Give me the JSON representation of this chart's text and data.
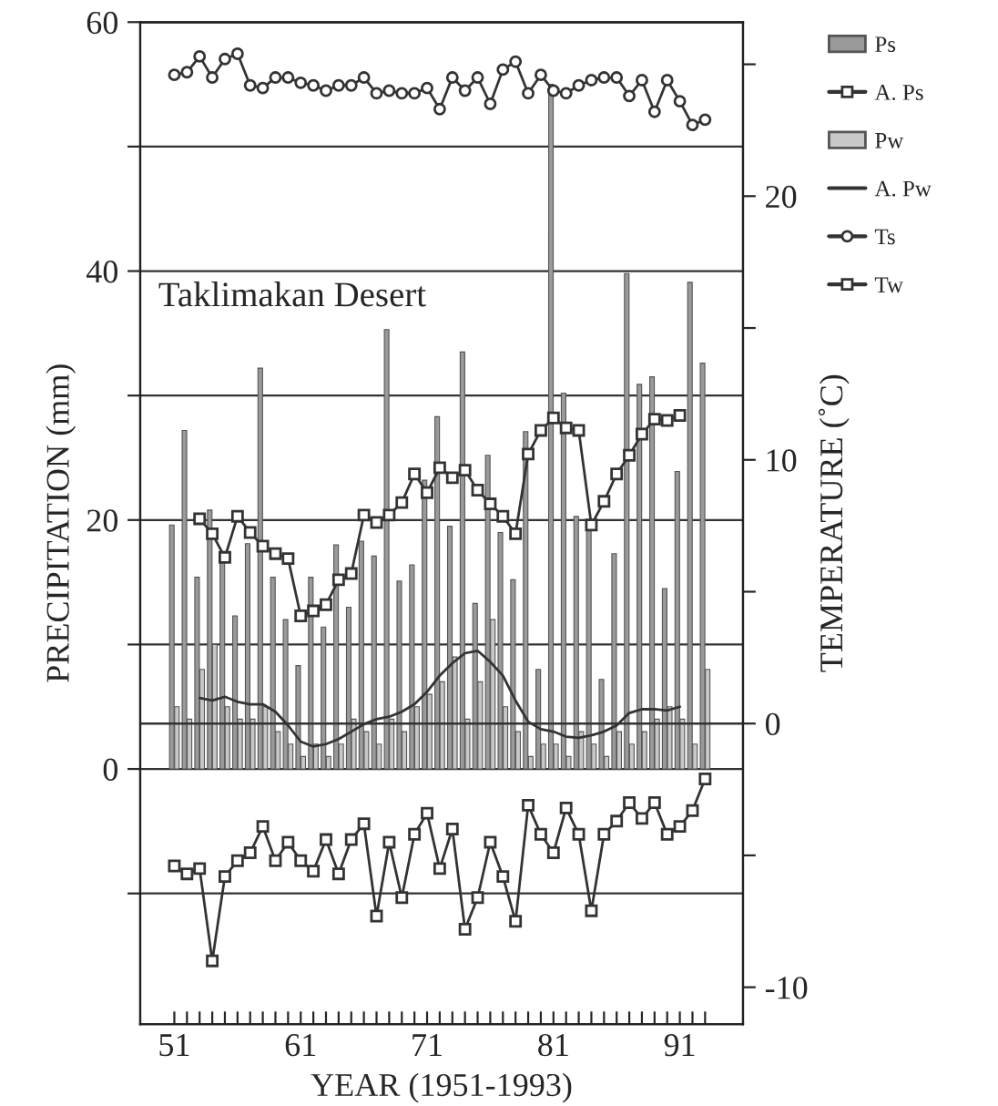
{
  "chart_data": {
    "type": "bar",
    "xlabel": "YEAR (1951-1993)",
    "ylabel": "PRECIPITATION (mm)",
    "y2label": "TEMPERATURE (˚C)",
    "annotations": [
      "Taklimakan Desert"
    ],
    "x": [
      1951,
      1952,
      1953,
      1954,
      1955,
      1956,
      1957,
      1958,
      1959,
      1960,
      1961,
      1962,
      1963,
      1964,
      1965,
      1966,
      1967,
      1968,
      1969,
      1970,
      1971,
      1972,
      1973,
      1974,
      1975,
      1976,
      1977,
      1978,
      1979,
      1980,
      1981,
      1982,
      1983,
      1984,
      1985,
      1986,
      1987,
      1988,
      1989,
      1990,
      1991,
      1992,
      1993
    ],
    "series": [
      {
        "name": "Ps",
        "color": "#9a9a9a",
        "values": [
          19.6,
          27.2,
          15.4,
          20.8,
          16.8,
          12.3,
          18.1,
          32.2,
          15.4,
          12.0,
          8.3,
          15.4,
          11.4,
          18.0,
          13.0,
          18.3,
          17.1,
          35.3,
          15.1,
          16.4,
          23.2,
          28.3,
          19.5,
          33.5,
          13.3,
          25.2,
          19.0,
          15.2,
          27.1,
          8.0,
          55,
          30.2,
          20.3,
          19.2,
          7.2,
          17.3,
          39.8,
          30.9,
          31.5,
          14.5,
          23.9,
          39.1,
          32.6
        ]
      },
      {
        "name": "A. Ps",
        "type": "line",
        "color": "#333333",
        "marker": "square",
        "values": [
          null,
          null,
          20.1,
          18.9,
          17.0,
          20.3,
          19.0,
          17.9,
          17.3,
          16.9,
          12.3,
          12.7,
          13.2,
          15.2,
          15.7,
          20.4,
          19.8,
          20.4,
          21.4,
          23.7,
          22.2,
          24.2,
          23.4,
          24.0,
          22.4,
          21.3,
          20.3,
          18.9,
          25.3,
          27.2,
          28.2,
          27.4,
          27.2,
          19.6,
          21.5,
          23.7,
          25.2,
          26.9,
          28.1,
          28.0,
          28.4,
          null,
          null
        ]
      },
      {
        "name": "Pw",
        "color": "#c8c8c8",
        "values": [
          5,
          4,
          8,
          10,
          5,
          4,
          4,
          5,
          3,
          2,
          1,
          2,
          1,
          2,
          4,
          3,
          2,
          4,
          3,
          5,
          6,
          7,
          9,
          4,
          7,
          12,
          5,
          3,
          1,
          2,
          2,
          1,
          3,
          2,
          1,
          3,
          2,
          3,
          4,
          5,
          4,
          2,
          8
        ]
      },
      {
        "name": "A. Pw",
        "type": "line",
        "color": "#333333",
        "marker": "none",
        "values": [
          null,
          null,
          5.7,
          5.5,
          5.8,
          5.4,
          5.2,
          5.2,
          4.6,
          3.5,
          2.2,
          1.8,
          2.0,
          2.4,
          3.0,
          3.6,
          4.0,
          4.2,
          4.6,
          5.2,
          6.2,
          7.5,
          8.5,
          9.3,
          9.5,
          8.6,
          7.5,
          5.5,
          3.8,
          3.2,
          3.0,
          2.6,
          2.5,
          2.7,
          3.0,
          3.5,
          4.5,
          4.8,
          4.8,
          4.7,
          5.0,
          null,
          null
        ]
      },
      {
        "name": "Ts",
        "type": "line",
        "axis": "y2",
        "color": "#333333",
        "marker": "circle",
        "values": [
          24.6,
          24.7,
          25.3,
          24.5,
          25.2,
          25.4,
          24.2,
          24.1,
          24.5,
          24.5,
          24.3,
          24.2,
          24.0,
          24.2,
          24.2,
          24.5,
          23.9,
          24.0,
          23.9,
          23.9,
          24.1,
          23.3,
          24.5,
          24.0,
          24.5,
          23.5,
          24.8,
          25.1,
          23.9,
          24.6,
          24.0,
          23.9,
          24.2,
          24.4,
          24.5,
          24.5,
          23.8,
          24.4,
          23.2,
          24.4,
          23.6,
          22.7,
          22.9
        ]
      },
      {
        "name": "Tw",
        "type": "line",
        "axis": "y2",
        "color": "#333333",
        "marker": "square",
        "values": [
          -5.4,
          -5.7,
          -5.5,
          -9.0,
          -5.8,
          -5.2,
          -4.9,
          -3.9,
          -5.2,
          -4.5,
          -5.2,
          -5.6,
          -4.4,
          -5.7,
          -4.4,
          -3.8,
          -7.3,
          -4.5,
          -6.6,
          -4.2,
          -3.4,
          -5.5,
          -4.0,
          -7.8,
          -6.6,
          -4.5,
          -5.8,
          -7.5,
          -3.1,
          -4.2,
          -4.9,
          -3.2,
          -4.2,
          -7.1,
          -4.2,
          -3.7,
          -3.0,
          -3.6,
          -3.0,
          -4.2,
          -3.9,
          -3.3,
          -2.1
        ]
      }
    ],
    "xlim": [
      1948.3,
      1996.0
    ],
    "xticks": [
      {
        "value": 1951,
        "label": "51"
      },
      {
        "value": 1952,
        "label": null
      },
      {
        "value": 1953,
        "label": null
      },
      {
        "value": 1954,
        "label": null
      },
      {
        "value": 1955,
        "label": null
      },
      {
        "value": 1956,
        "label": null
      },
      {
        "value": 1957,
        "label": null
      },
      {
        "value": 1958,
        "label": null
      },
      {
        "value": 1959,
        "label": null
      },
      {
        "value": 1960,
        "label": null
      },
      {
        "value": 1961,
        "label": "61"
      },
      {
        "value": 1962,
        "label": null
      },
      {
        "value": 1963,
        "label": null
      },
      {
        "value": 1964,
        "label": null
      },
      {
        "value": 1965,
        "label": null
      },
      {
        "value": 1966,
        "label": null
      },
      {
        "value": 1967,
        "label": null
      },
      {
        "value": 1968,
        "label": null
      },
      {
        "value": 1969,
        "label": null
      },
      {
        "value": 1970,
        "label": null
      },
      {
        "value": 1971,
        "label": "71"
      },
      {
        "value": 1972,
        "label": null
      },
      {
        "value": 1973,
        "label": null
      },
      {
        "value": 1974,
        "label": null
      },
      {
        "value": 1975,
        "label": null
      },
      {
        "value": 1976,
        "label": null
      },
      {
        "value": 1977,
        "label": null
      },
      {
        "value": 1978,
        "label": null
      },
      {
        "value": 1979,
        "label": null
      },
      {
        "value": 1980,
        "label": null
      },
      {
        "value": 1981,
        "label": "81"
      },
      {
        "value": 1982,
        "label": null
      },
      {
        "value": 1983,
        "label": null
      },
      {
        "value": 1984,
        "label": null
      },
      {
        "value": 1985,
        "label": null
      },
      {
        "value": 1986,
        "label": null
      },
      {
        "value": 1987,
        "label": null
      },
      {
        "value": 1988,
        "label": null
      },
      {
        "value": 1989,
        "label": null
      },
      {
        "value": 1990,
        "label": null
      },
      {
        "value": 1991,
        "label": "91"
      },
      {
        "value": 1992,
        "label": null
      },
      {
        "value": 1993,
        "label": null
      }
    ],
    "ylim": [
      -20.5,
      60
    ],
    "yticks": [
      {
        "value": -10,
        "label": null
      },
      0,
      {
        "value": 10,
        "label": null
      },
      20,
      {
        "value": 30,
        "label": null
      },
      40,
      {
        "value": 50,
        "label": null
      },
      60
    ],
    "y2lim": [
      -11.4,
      26.6
    ],
    "y2ticks": [
      -10,
      {
        "value": -5,
        "label": null
      },
      0,
      {
        "value": 5,
        "label": null
      },
      10,
      {
        "value": 15,
        "label": null
      },
      20,
      {
        "value": 25,
        "label": null
      }
    ],
    "ref_lines": [
      {
        "axis": "y2",
        "value": 0,
        "color": "#333333"
      }
    ],
    "grid": "y",
    "legend": "right"
  }
}
